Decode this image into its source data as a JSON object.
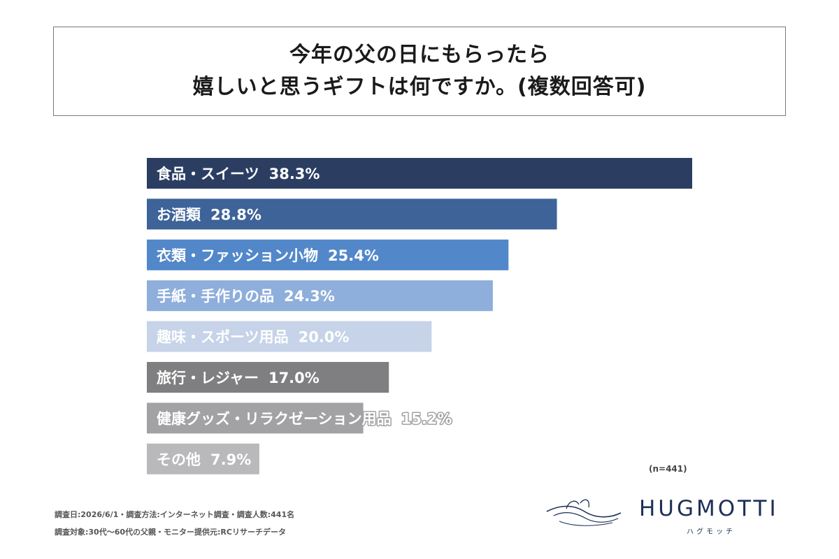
{
  "title": {
    "line1": "今年の父の日にもらったら",
    "line2": "嬉しいと思うギフトは何ですか。(複数回答可)"
  },
  "chart_data": {
    "type": "bar",
    "orientation": "horizontal",
    "categories": [
      "食品・スイーツ",
      "お酒類",
      "衣類・ファッション小物",
      "手紙・手作りの品",
      "趣味・スポーツ用品",
      "旅行・レジャー",
      "健康グッズ・リラクゼーション用品",
      "その他"
    ],
    "values": [
      38.3,
      28.8,
      25.4,
      24.3,
      20.0,
      17.0,
      15.2,
      7.9
    ],
    "value_labels": [
      "38.3%",
      "28.8%",
      "25.4%",
      "24.3%",
      "20.0%",
      "17.0%",
      "15.2%",
      "7.9%"
    ],
    "colors": [
      "#2b3e62",
      "#3d6399",
      "#5288c9",
      "#8eaedb",
      "#c6d3e8",
      "#7f7f81",
      "#a2a2a4",
      "#b9b9bb"
    ],
    "label_colors": [
      "#ffffff",
      "#ffffff",
      "#ffffff",
      "#ffffff",
      "#ffffff",
      "#ffffff",
      "#ffffff",
      "#ffffff"
    ],
    "xlim": [
      0,
      38.3
    ],
    "grid": false,
    "legend": "none"
  },
  "n_note": "(n=441)",
  "footnotes": {
    "line1": "調査日:2026/6/1・調査方法:インターネット調査・調査人数:441名",
    "line2": "調査対象:30代〜60代の父親・モニター提供元:RCリサーチデータ"
  },
  "logo": {
    "wordmark": "HUGMOTTI",
    "kana": "ハグモッチ",
    "color": "#1d2f57"
  }
}
